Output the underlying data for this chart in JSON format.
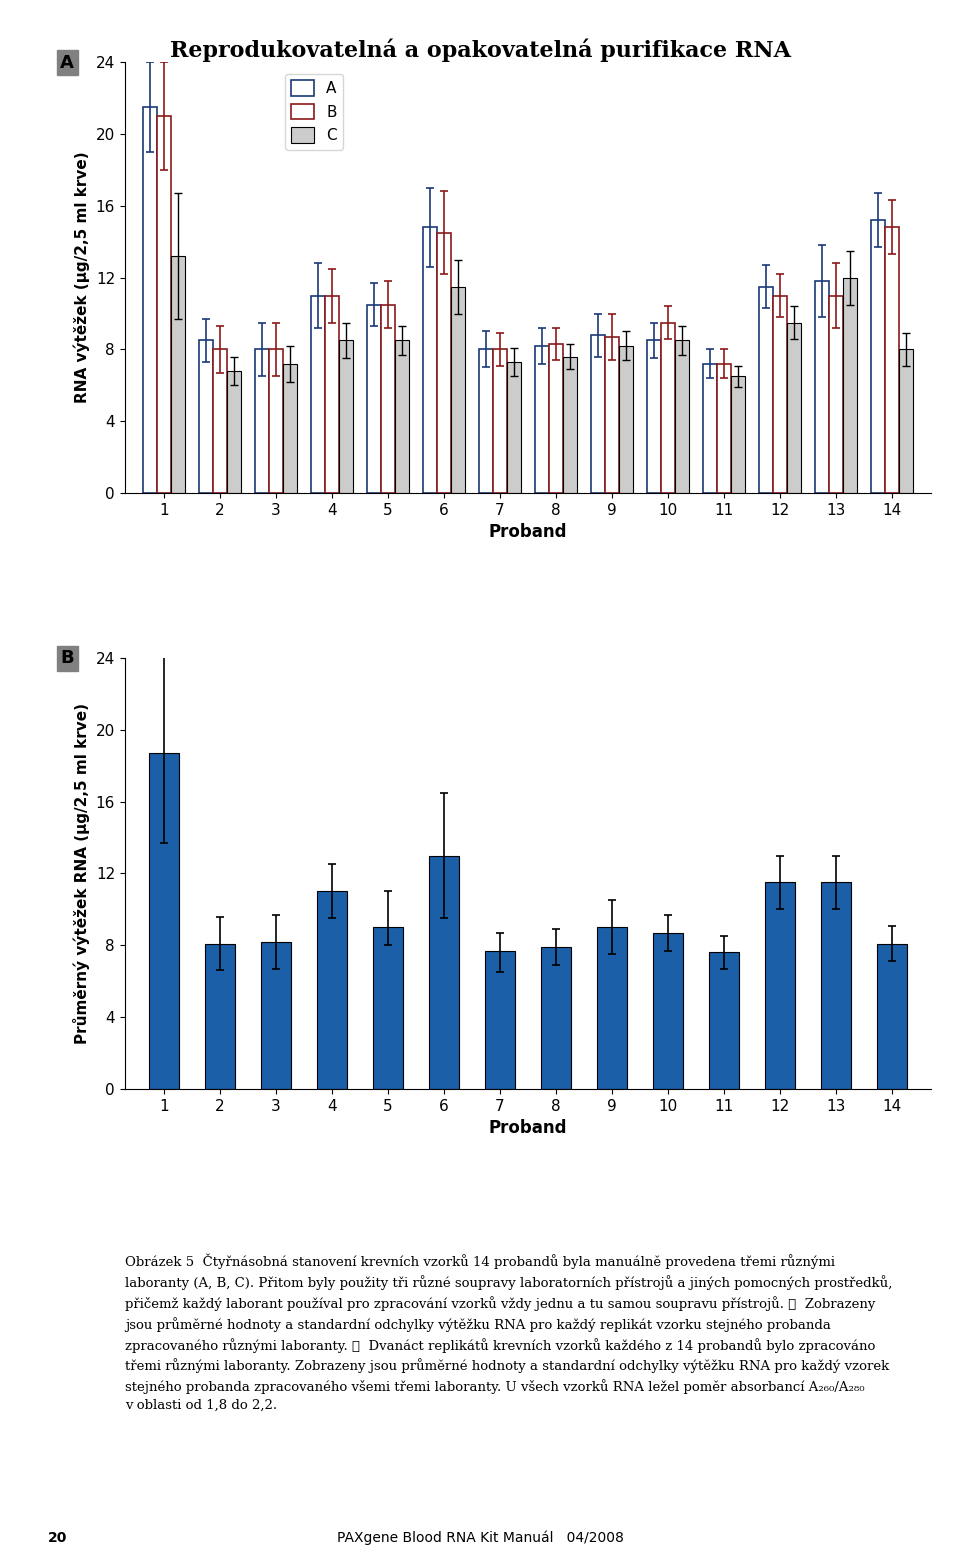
{
  "title": "Reprodukovatelná a opakovatelná purifikace RNA",
  "panel_A_label": "A",
  "panel_B_label": "B",
  "probands": [
    1,
    2,
    3,
    4,
    5,
    6,
    7,
    8,
    9,
    10,
    11,
    12,
    13,
    14
  ],
  "xlabel": "Proband",
  "ylabel_A": "RNA výtěžek (μg/2,5 ml krve)",
  "ylabel_B": "Průměrný výtěžek RNA (μg/2,5 ml krve)",
  "ylim_A": [
    0,
    24
  ],
  "ylim_B": [
    0,
    24
  ],
  "yticks": [
    0,
    4,
    8,
    12,
    16,
    20,
    24
  ],
  "A_values": [
    21.5,
    8.5,
    8.0,
    11.0,
    10.5,
    14.8,
    8.0,
    8.2,
    8.8,
    8.5,
    7.2,
    11.5,
    11.8,
    15.2
  ],
  "A_errors": [
    2.5,
    1.2,
    1.5,
    1.8,
    1.2,
    2.2,
    1.0,
    1.0,
    1.2,
    1.0,
    0.8,
    1.2,
    2.0,
    1.5
  ],
  "B_values": [
    21.0,
    8.0,
    8.0,
    11.0,
    10.5,
    14.5,
    8.0,
    8.3,
    8.7,
    9.5,
    7.2,
    11.0,
    11.0,
    14.8
  ],
  "B_errors": [
    3.0,
    1.3,
    1.5,
    1.5,
    1.3,
    2.3,
    0.9,
    0.9,
    1.3,
    0.9,
    0.8,
    1.2,
    1.8,
    1.5
  ],
  "C_values": [
    13.2,
    6.8,
    7.2,
    8.5,
    8.5,
    11.5,
    7.3,
    7.6,
    8.2,
    8.5,
    6.5,
    9.5,
    12.0,
    8.0
  ],
  "C_errors": [
    3.5,
    0.8,
    1.0,
    1.0,
    0.8,
    1.5,
    0.8,
    0.7,
    0.8,
    0.8,
    0.6,
    0.9,
    1.5,
    0.9
  ],
  "bar_B_values": [
    18.7,
    8.1,
    8.2,
    11.0,
    9.0,
    13.0,
    7.7,
    7.9,
    9.0,
    8.7,
    7.6,
    11.5,
    11.5,
    8.1
  ],
  "bar_B_errors_lo": [
    5.0,
    1.5,
    1.5,
    1.5,
    1.0,
    3.5,
    1.2,
    1.0,
    1.5,
    1.0,
    0.9,
    1.5,
    1.5,
    1.0
  ],
  "bar_B_errors_hi": [
    5.5,
    1.5,
    1.5,
    1.5,
    2.0,
    3.5,
    1.0,
    1.0,
    1.5,
    1.0,
    0.9,
    1.5,
    1.5,
    1.0
  ],
  "color_A": "#1a3a7a",
  "color_B": "#8b1a1a",
  "color_C": "#cccccc",
  "color_bar_B": "#1a5fa8",
  "bar_width": 0.25,
  "background_color": "#ffffff",
  "legend_labels": [
    "A",
    "B",
    "C"
  ],
  "footer_text": "20                                                PAXgene Blood RNA Kit Manuál   04/2008"
}
